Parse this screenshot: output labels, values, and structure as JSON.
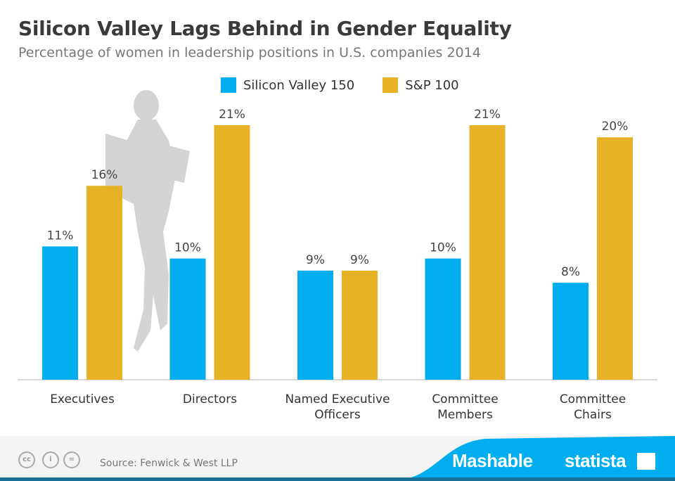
{
  "chart_data": {
    "type": "bar",
    "title": "Silicon Valley Lags Behind in Gender Equality",
    "subtitle": "Percentage of women in leadership positions in U.S. companies 2014",
    "categories": [
      [
        "Executives"
      ],
      [
        "Directors"
      ],
      [
        "Named Executive",
        "Officers"
      ],
      [
        "Committee",
        "Members"
      ],
      [
        "Committee",
        "Chairs"
      ]
    ],
    "series": [
      {
        "name": "Silicon Valley 150",
        "color": "#00aeef",
        "values": [
          11,
          10,
          9,
          10,
          8
        ],
        "labels": [
          "11%",
          "10%",
          "9%",
          "10%",
          "8%"
        ]
      },
      {
        "name": "S&P 100",
        "color": "#e8b227",
        "values": [
          16,
          21,
          9,
          21,
          20
        ],
        "labels": [
          "16%",
          "21%",
          "9%",
          "21%",
          "20%"
        ]
      }
    ],
    "ylim": [
      0,
      21
    ],
    "grid": false,
    "legend": "top-center"
  },
  "footer": {
    "source": "Source: Fenwick & West LLP",
    "brand1": "Mashable",
    "brand2": "statista",
    "cc_icons": [
      "cc-icon",
      "by-icon",
      "nd-icon"
    ]
  }
}
